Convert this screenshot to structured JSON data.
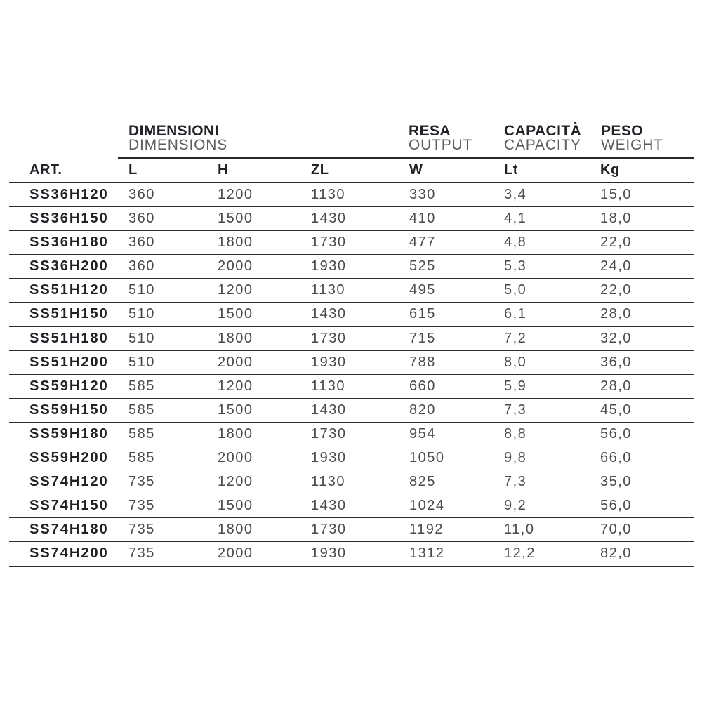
{
  "page": {
    "background_color": "#ffffff",
    "text_dark_color": "#202227",
    "text_light_color": "#474a4f",
    "line_color": "#26282d"
  },
  "table": {
    "column_groups": [
      {
        "title": "DIMENSIONI",
        "subtitle": "DIMENSIONS"
      },
      {
        "title": "RESA",
        "subtitle": "OUTPUT"
      },
      {
        "title": "CAPACITÀ",
        "subtitle": "CAPACITY"
      },
      {
        "title": "PESO",
        "subtitle": "WEIGHT"
      }
    ],
    "columns": [
      "ART.",
      "L",
      "H",
      "ZL",
      "W",
      "Lt",
      "Kg"
    ],
    "rows": [
      [
        "SS36H120",
        "360",
        "1200",
        "1130",
        "330",
        "3,4",
        "15,0"
      ],
      [
        "SS36H150",
        "360",
        "1500",
        "1430",
        "410",
        "4,1",
        "18,0"
      ],
      [
        "SS36H180",
        "360",
        "1800",
        "1730",
        "477",
        "4,8",
        "22,0"
      ],
      [
        "SS36H200",
        "360",
        "2000",
        "1930",
        "525",
        "5,3",
        "24,0"
      ],
      [
        "SS51H120",
        "510",
        "1200",
        "1130",
        "495",
        "5,0",
        "22,0"
      ],
      [
        "SS51H150",
        "510",
        "1500",
        "1430",
        "615",
        "6,1",
        "28,0"
      ],
      [
        "SS51H180",
        "510",
        "1800",
        "1730",
        "715",
        "7,2",
        "32,0"
      ],
      [
        "SS51H200",
        "510",
        "2000",
        "1930",
        "788",
        "8,0",
        "36,0"
      ],
      [
        "SS59H120",
        "585",
        "1200",
        "1130",
        "660",
        "5,9",
        "28,0"
      ],
      [
        "SS59H150",
        "585",
        "1500",
        "1430",
        "820",
        "7,3",
        "45,0"
      ],
      [
        "SS59H180",
        "585",
        "1800",
        "1730",
        "954",
        "8,8",
        "56,0"
      ],
      [
        "SS59H200",
        "585",
        "2000",
        "1930",
        "1050",
        "9,8",
        "66,0"
      ],
      [
        "SS74H120",
        "735",
        "1200",
        "1130",
        "825",
        "7,3",
        "35,0"
      ],
      [
        "SS74H150",
        "735",
        "1500",
        "1430",
        "1024",
        "9,2",
        "56,0"
      ],
      [
        "SS74H180",
        "735",
        "1800",
        "1730",
        "1192",
        "11,0",
        "70,0"
      ],
      [
        "SS74H200",
        "735",
        "2000",
        "1930",
        "1312",
        "12,2",
        "82,0"
      ]
    ]
  }
}
